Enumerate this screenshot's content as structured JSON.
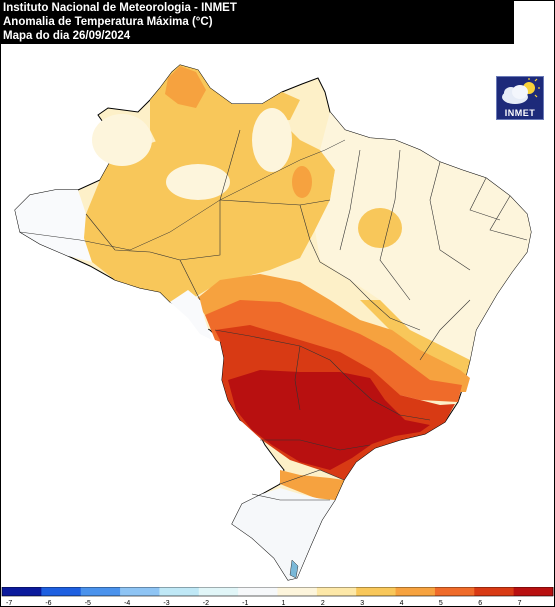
{
  "header": {
    "line1": "Instituto Nacional de Meteorologia - INMET",
    "line2": "Anomalia de Temperatura Máxima (°C)",
    "line3": "Mapa do dia 26/09/2024"
  },
  "logo": {
    "label": "INMET",
    "icon": "cloud-sun-icon"
  },
  "legend": {
    "labels": [
      "-7",
      "-6",
      "-5",
      "-4",
      "-3",
      "-2",
      "-1",
      "1",
      "2",
      "3",
      "4",
      "5",
      "6",
      "7"
    ],
    "colors": [
      "#0b1a9c",
      "#1e5fe0",
      "#4a92ec",
      "#8ec4f4",
      "#bfe8f6",
      "#e1f6f8",
      "#f6f8fa",
      "#fdf5dc",
      "#fde8a8",
      "#f8c75a",
      "#f6a23f",
      "#ef6b2a",
      "#d83a14",
      "#b81010"
    ]
  },
  "chart_data": {
    "type": "heatmap",
    "title": "Anomalia de Temperatura Máxima (°C)",
    "scale_min": -7,
    "scale_max": 7,
    "legend_ticks": [
      -7,
      -6,
      -5,
      -4,
      -3,
      -2,
      -1,
      1,
      2,
      3,
      4,
      5,
      6,
      7
    ]
  }
}
